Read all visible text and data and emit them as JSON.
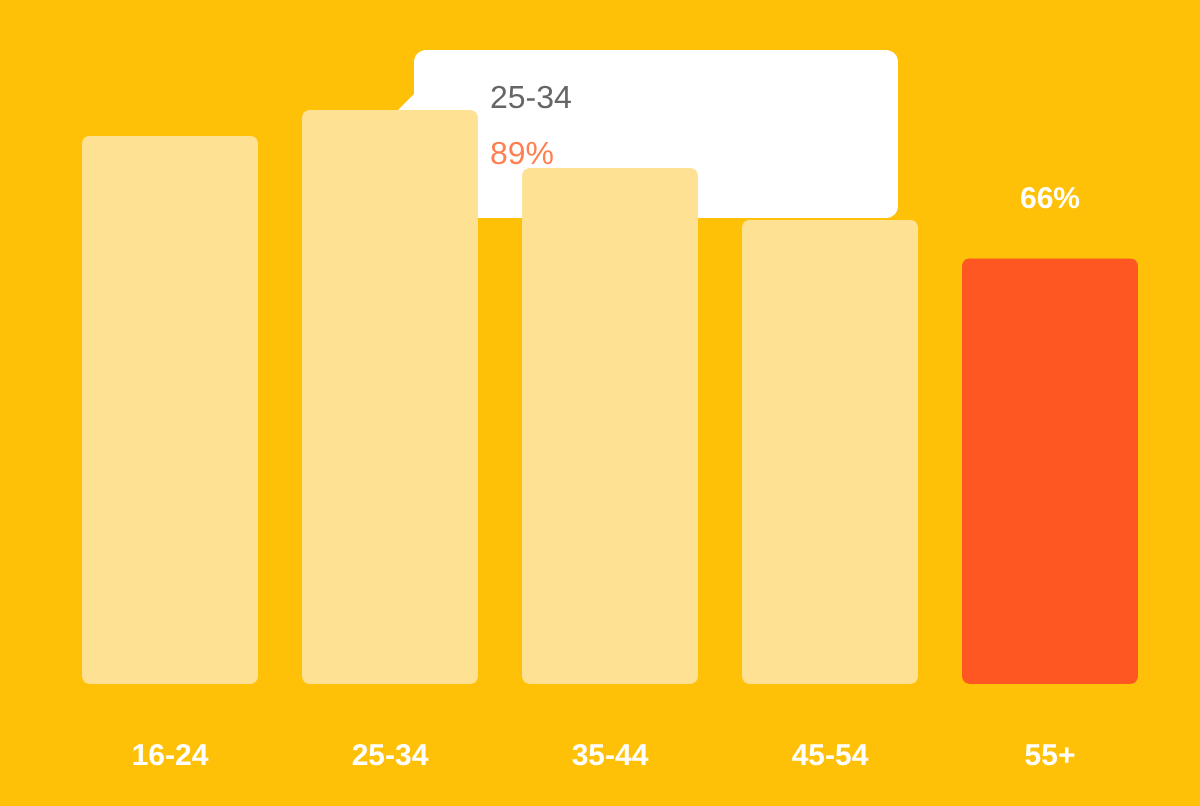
{
  "chart_data": {
    "type": "bar",
    "categories": [
      "16-24",
      "25-34",
      "35-44",
      "45-54",
      "55+"
    ],
    "values": [
      85,
      89,
      80,
      72,
      66
    ],
    "colors": [
      "#ffe194",
      "#ffe194",
      "#ffe194",
      "#ffe194",
      "#ff5722"
    ],
    "value_labels": [
      null,
      null,
      null,
      null,
      "66%"
    ],
    "annotations": [
      "25-34",
      "89%"
    ]
  }
}
